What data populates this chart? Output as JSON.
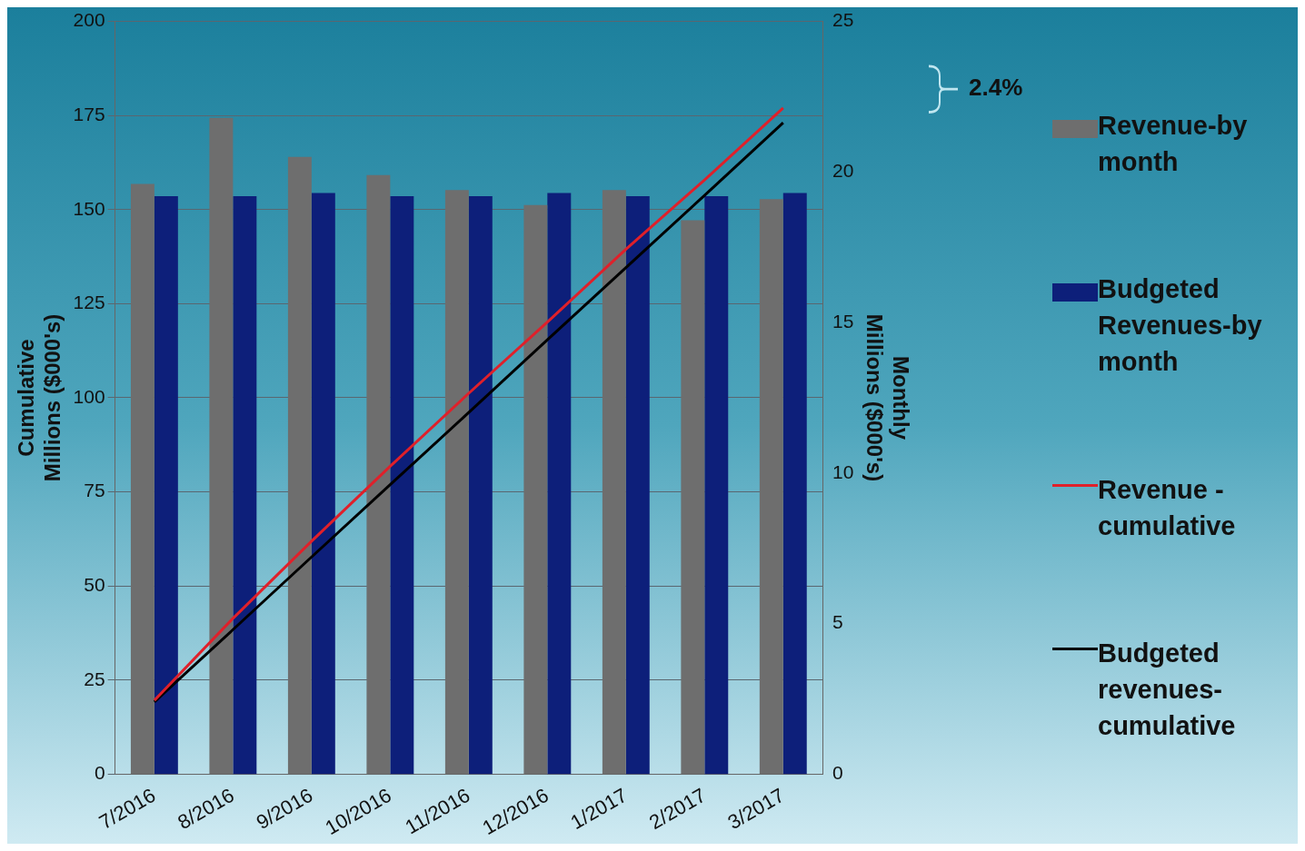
{
  "chart_data": {
    "type": "bar",
    "categories": [
      "7/2016",
      "8/2016",
      "9/2016",
      "10/2016",
      "11/2016",
      "12/2016",
      "1/2017",
      "2/2017",
      "3/2017"
    ],
    "ylabel": "Cumulative Millions ($000's)",
    "y2label": "Monthly Millions ($000's)",
    "ylim": [
      0,
      200
    ],
    "yticks": [
      0,
      25,
      50,
      75,
      100,
      125,
      150,
      175,
      200
    ],
    "y2lim": [
      0,
      25
    ],
    "y2ticks": [
      0,
      5,
      10,
      15,
      20,
      25
    ],
    "grid": "y",
    "legend": "right",
    "annotations": [
      "2.4%"
    ],
    "series": [
      {
        "name": "Revenue-by month",
        "axis": "y2",
        "color": "#6e6e6e",
        "values": [
          19.6,
          21.8,
          20.5,
          19.9,
          19.4,
          18.9,
          19.4,
          18.4,
          19.1
        ]
      },
      {
        "name": "Budgeted Revenues-by month",
        "axis": "y2",
        "color": "#0d1f7a",
        "values": [
          19.2,
          19.2,
          19.3,
          19.2,
          19.2,
          19.3,
          19.2,
          19.2,
          19.3
        ]
      },
      {
        "name": "Revenue - cumulative",
        "type": "line",
        "axis": "y",
        "color": "#e0202a",
        "values": [
          19.6,
          41.4,
          61.9,
          81.8,
          101.2,
          120.1,
          139.5,
          157.9,
          177.0
        ]
      },
      {
        "name": "Budgeted revenues-cumulative",
        "type": "line",
        "axis": "y",
        "color": "#000000",
        "values": [
          19.2,
          38.4,
          57.7,
          76.9,
          96.1,
          115.4,
          134.6,
          153.8,
          173.1
        ]
      }
    ]
  }
}
